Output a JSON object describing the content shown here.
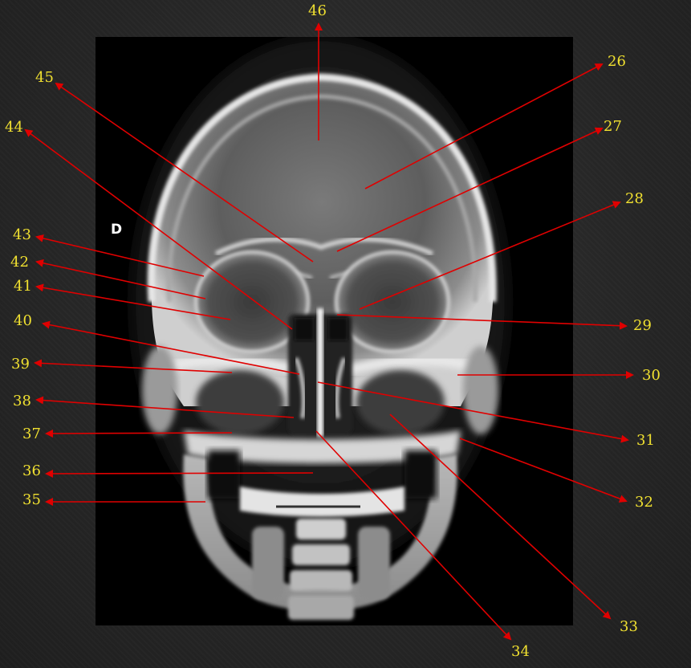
{
  "figure": {
    "side_marker": "D",
    "colors": {
      "label": "#f0e030",
      "arrow": "#e00000",
      "background": "#2b2b2b",
      "panel": "#000000"
    }
  },
  "labels": [
    {
      "id": "46",
      "text": "46"
    },
    {
      "id": "26",
      "text": "26"
    },
    {
      "id": "27",
      "text": "27"
    },
    {
      "id": "28",
      "text": "28"
    },
    {
      "id": "29",
      "text": "29"
    },
    {
      "id": "30",
      "text": "30"
    },
    {
      "id": "31",
      "text": "31"
    },
    {
      "id": "32",
      "text": "32"
    },
    {
      "id": "33",
      "text": "33"
    },
    {
      "id": "34",
      "text": "34"
    },
    {
      "id": "35",
      "text": "35"
    },
    {
      "id": "36",
      "text": "36"
    },
    {
      "id": "37",
      "text": "37"
    },
    {
      "id": "38",
      "text": "38"
    },
    {
      "id": "39",
      "text": "39"
    },
    {
      "id": "40",
      "text": "40"
    },
    {
      "id": "41",
      "text": "41"
    },
    {
      "id": "42",
      "text": "42"
    },
    {
      "id": "43",
      "text": "43"
    },
    {
      "id": "44",
      "text": "44"
    },
    {
      "id": "45",
      "text": "45"
    }
  ]
}
